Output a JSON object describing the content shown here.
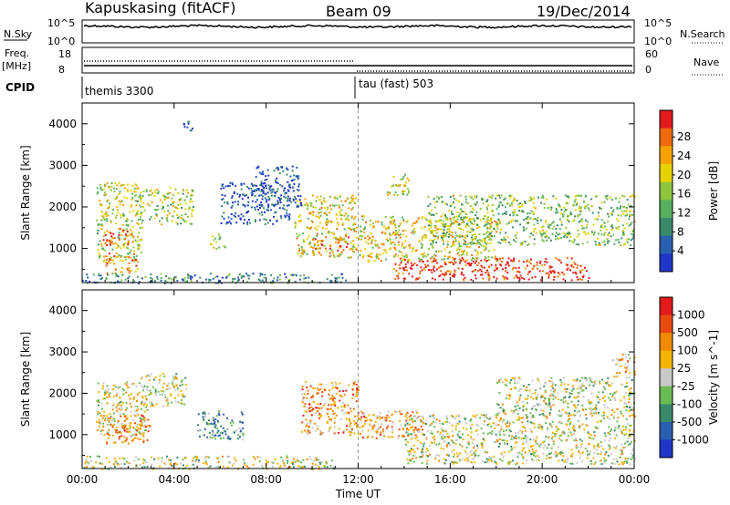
{
  "header": {
    "station": "Kapuskasing (fitACF)",
    "beam": "Beam 09",
    "date": "19/Dec/2014"
  },
  "top_panels": {
    "nsky_label": "N.Sky",
    "nsky_ticks": [
      "10^5",
      "10^0"
    ],
    "nsearch_label": "N.Search",
    "nsearch_ticks": [
      "10^5",
      "10^0"
    ],
    "freq_label": "Freq.",
    "freq_unit": "[MHz]",
    "freq_ticks": [
      "18",
      "8"
    ],
    "nave_label": "Nave",
    "nave_ticks": [
      "60",
      "0"
    ],
    "cpid_label": "CPID",
    "cpid_segments": [
      "themis 3300",
      "tau (fast) 503"
    ]
  },
  "chart_data": [
    {
      "type": "heatmap",
      "title": "",
      "xlabel": "",
      "ylabel": "Slant Range [km]",
      "x_ticks": [
        "00:00",
        "04:00",
        "08:00",
        "12:00",
        "16:00",
        "20:00",
        "00:00"
      ],
      "xlim_hours": [
        0,
        24
      ],
      "y_ticks": [
        1000,
        2000,
        3000,
        4000
      ],
      "ylim": [
        180,
        4500
      ],
      "colorbar": {
        "label": "Power [dB]",
        "ticks": [
          "4",
          "8",
          "12",
          "16",
          "20",
          "24",
          "28"
        ],
        "colors": [
          "#1f36c8",
          "#2a5fb0",
          "#3a8a6a",
          "#56b060",
          "#8ec63f",
          "#e6d200",
          "#f5a200",
          "#ee6a0c",
          "#e31a1c"
        ]
      },
      "regions": [
        {
          "t0": 0.6,
          "t1": 2.6,
          "r0": 700,
          "r1": 2600,
          "level": 0.55
        },
        {
          "t0": 0.8,
          "t1": 2.2,
          "r0": 1100,
          "r1": 1500,
          "level": 0.85
        },
        {
          "t0": 1.0,
          "t1": 2.4,
          "r0": 400,
          "r1": 900,
          "level": 0.8
        },
        {
          "t0": 2.3,
          "t1": 4.8,
          "r0": 1600,
          "r1": 2500,
          "level": 0.5
        },
        {
          "t0": 4.2,
          "t1": 4.8,
          "r0": 3800,
          "r1": 4100,
          "level": 0.15
        },
        {
          "t0": 5.5,
          "t1": 6.2,
          "r0": 1000,
          "r1": 1400,
          "level": 0.5
        },
        {
          "t0": 9.2,
          "t1": 11.9,
          "r0": 800,
          "r1": 2300,
          "level": 0.6
        },
        {
          "t0": 10.0,
          "t1": 11.8,
          "r0": 900,
          "r1": 1300,
          "level": 0.9
        },
        {
          "t0": 12.0,
          "t1": 18.0,
          "r0": 700,
          "r1": 1800,
          "level": 0.6
        },
        {
          "t0": 13.5,
          "t1": 22.0,
          "r0": 250,
          "r1": 800,
          "level": 0.95
        },
        {
          "t0": 15.0,
          "t1": 24.0,
          "r0": 1100,
          "r1": 2300,
          "level": 0.45
        },
        {
          "t0": 13.2,
          "t1": 14.2,
          "r0": 2300,
          "r1": 2800,
          "level": 0.55
        },
        {
          "t0": 0.0,
          "t1": 11.5,
          "r0": 180,
          "r1": 420,
          "level": 0.3
        },
        {
          "t0": 6.0,
          "t1": 9.0,
          "r0": 1600,
          "r1": 2600,
          "level": 0.1
        },
        {
          "t0": 7.5,
          "t1": 9.5,
          "r0": 2000,
          "r1": 3000,
          "level": 0.1
        }
      ]
    },
    {
      "type": "heatmap",
      "title": "",
      "xlabel": "Time UT",
      "ylabel": "Slant Range [km]",
      "x_ticks": [
        "00:00",
        "04:00",
        "08:00",
        "12:00",
        "16:00",
        "20:00",
        "00:00"
      ],
      "xlim_hours": [
        0,
        24
      ],
      "y_ticks": [
        1000,
        2000,
        3000,
        4000
      ],
      "ylim": [
        180,
        4500
      ],
      "colorbar": {
        "label": "Velocity [m s^-1]",
        "ticks": [
          "1000",
          "500",
          "100",
          "25",
          "-25",
          "-100",
          "-500",
          "-1000"
        ],
        "colors": [
          "#1f36c8",
          "#2a5fb0",
          "#3a8a6a",
          "#6bbb55",
          "#c8c8c8",
          "#f5b400",
          "#f08a00",
          "#ea4a10",
          "#e31a1c"
        ]
      },
      "regions": [
        {
          "t0": 0.6,
          "t1": 2.8,
          "r0": 1000,
          "r1": 2300,
          "level": 0.55
        },
        {
          "t0": 1.0,
          "t1": 3.0,
          "r0": 800,
          "r1": 1500,
          "level": 0.7
        },
        {
          "t0": 2.5,
          "t1": 4.5,
          "r0": 1700,
          "r1": 2500,
          "level": 0.5
        },
        {
          "t0": 5.0,
          "t1": 7.0,
          "r0": 900,
          "r1": 1600,
          "level": 0.3
        },
        {
          "t0": 9.5,
          "t1": 12.0,
          "r0": 1000,
          "r1": 2300,
          "level": 0.7
        },
        {
          "t0": 12.0,
          "t1": 15.0,
          "r0": 900,
          "r1": 1600,
          "level": 0.7
        },
        {
          "t0": 14.0,
          "t1": 24.0,
          "r0": 300,
          "r1": 1500,
          "level": 0.5
        },
        {
          "t0": 18.0,
          "t1": 24.0,
          "r0": 1500,
          "r1": 2400,
          "level": 0.5
        },
        {
          "t0": 23.0,
          "t1": 24.0,
          "r0": 2400,
          "r1": 3000,
          "level": 0.65
        },
        {
          "t0": 0.0,
          "t1": 11.0,
          "r0": 180,
          "r1": 500,
          "level": 0.5
        }
      ]
    }
  ]
}
